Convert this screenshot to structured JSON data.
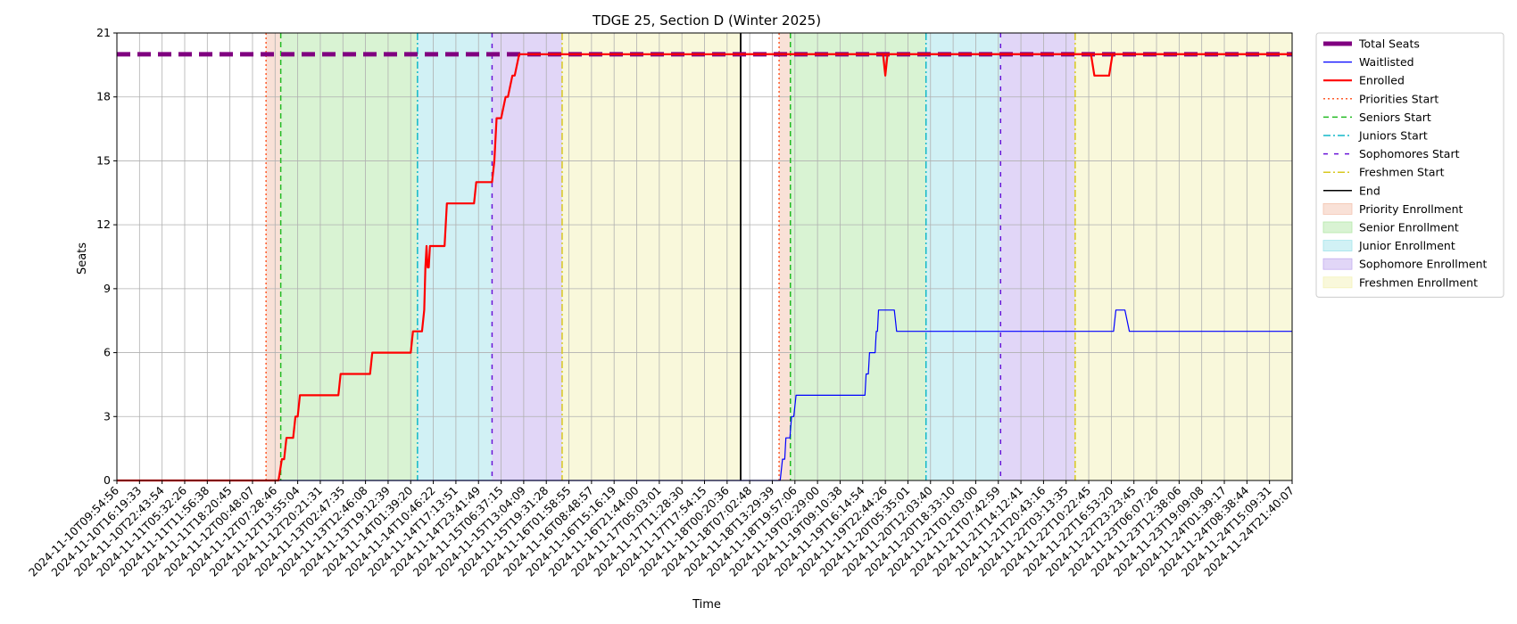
{
  "chart_data": {
    "type": "line",
    "title": "TDGE 25, Section D (Winter 2025)",
    "xlabel": "Time",
    "ylabel": "Seats",
    "ylim": [
      0,
      21
    ],
    "yticks": [
      0,
      3,
      6,
      9,
      12,
      15,
      18,
      21
    ],
    "grid": true,
    "legend_position": "outside-right",
    "x_tick_labels": [
      "2024-11-10T09:54:56",
      "2024-11-10T16:19:33",
      "2024-11-10T22:43:54",
      "2024-11-11T05:32:26",
      "2024-11-11T11:56:38",
      "2024-11-11T18:20:45",
      "2024-11-12T00:48:07",
      "2024-11-12T07:28:46",
      "2024-11-12T13:55:04",
      "2024-11-12T20:21:31",
      "2024-11-13T02:47:35",
      "2024-11-13T12:46:08",
      "2024-11-13T19:12:39",
      "2024-11-14T01:39:20",
      "2024-11-14T10:46:22",
      "2024-11-14T17:13:51",
      "2024-11-14T23:41:49",
      "2024-11-15T06:37:15",
      "2024-11-15T13:04:09",
      "2024-11-15T19:31:28",
      "2024-11-16T01:58:55",
      "2024-11-16T08:48:57",
      "2024-11-16T15:16:19",
      "2024-11-16T21:44:00",
      "2024-11-17T05:03:01",
      "2024-11-17T11:28:30",
      "2024-11-17T17:54:15",
      "2024-11-18T00:20:36",
      "2024-11-18T07:02:48",
      "2024-11-18T13:29:39",
      "2024-11-18T19:57:06",
      "2024-11-19T02:29:00",
      "2024-11-19T09:10:38",
      "2024-11-19T16:14:54",
      "2024-11-19T22:44:26",
      "2024-11-20T05:35:01",
      "2024-11-20T12:03:40",
      "2024-11-20T18:33:10",
      "2024-11-21T01:03:00",
      "2024-11-21T07:42:59",
      "2024-11-21T14:12:41",
      "2024-11-21T20:43:16",
      "2024-11-22T03:13:35",
      "2024-11-22T10:22:45",
      "2024-11-22T16:53:20",
      "2024-11-22T23:23:45",
      "2024-11-23T06:07:26",
      "2024-11-23T12:38:06",
      "2024-11-23T19:09:08",
      "2024-11-24T01:39:17",
      "2024-11-24T08:38:44",
      "2024-11-24T15:09:31",
      "2024-11-24T21:40:07"
    ],
    "xlim": [
      0,
      52
    ],
    "phases": [
      {
        "name": "Priority Enrollment",
        "start": 6.6,
        "end": 7.25,
        "color": "#f4c4b0"
      },
      {
        "name": "Senior Enrollment",
        "start": 7.25,
        "end": 13.3,
        "color": "#b4e8a8"
      },
      {
        "name": "Junior Enrollment",
        "start": 13.3,
        "end": 16.6,
        "color": "#a4e4ec"
      },
      {
        "name": "Sophomore Enrollment",
        "start": 16.6,
        "end": 19.7,
        "color": "#c4aef0"
      },
      {
        "name": "Freshmen Enrollment",
        "start": 19.7,
        "end": 27.6,
        "color": "#f4f2b8"
      },
      {
        "name": "Priority Enrollment",
        "start": 29.3,
        "end": 29.8,
        "color": "#f4c4b0"
      },
      {
        "name": "Senior Enrollment",
        "start": 29.8,
        "end": 35.8,
        "color": "#b4e8a8"
      },
      {
        "name": "Junior Enrollment",
        "start": 35.8,
        "end": 39.1,
        "color": "#a4e4ec"
      },
      {
        "name": "Sophomore Enrollment",
        "start": 39.1,
        "end": 42.4,
        "color": "#c4aef0"
      },
      {
        "name": "Freshmen Enrollment",
        "start": 42.4,
        "end": 52,
        "color": "#f4f2b8"
      }
    ],
    "markers": [
      {
        "name": "Priorities Start",
        "x": [
          6.6,
          29.3
        ],
        "color": "#ff5a2a",
        "dash": "2,3"
      },
      {
        "name": "Seniors Start",
        "x": [
          7.25,
          29.8
        ],
        "color": "#22bb22",
        "dash": "6,4"
      },
      {
        "name": "Juniors Start",
        "x": [
          13.3,
          35.8
        ],
        "color": "#12b8c8",
        "dash": "8,3,2,3"
      },
      {
        "name": "Sophomores Start",
        "x": [
          16.6,
          39.1
        ],
        "color": "#6a14d8",
        "dash": "5,7"
      },
      {
        "name": "Freshmen Start",
        "x": [
          19.7,
          42.4
        ],
        "color": "#d8c820",
        "dash": "8,3,2,3"
      },
      {
        "name": "End",
        "x": [
          27.6
        ],
        "color": "#000000",
        "dash": ""
      }
    ],
    "series": [
      {
        "name": "Total Seats",
        "color": "#800080",
        "width": 5,
        "dash": "15,8",
        "x": [
          0,
          52
        ],
        "y": [
          20,
          20
        ]
      },
      {
        "name": "Waitlisted",
        "color": "#0000ff",
        "width": 1.2,
        "dash": "",
        "x": [
          0,
          29.35,
          29.45,
          29.55,
          29.6,
          29.7,
          29.78,
          29.85,
          29.95,
          30.05,
          30.1,
          30.2,
          30.3,
          33.1,
          33.15,
          33.25,
          33.3,
          33.4,
          33.5,
          33.55,
          33.6,
          33.65,
          33.7,
          33.8,
          34.0,
          34.4,
          34.5,
          34.6,
          44.1,
          44.2,
          44.3,
          44.4,
          44.6,
          44.8,
          52
        ],
        "y": [
          0,
          0,
          1,
          1,
          2,
          2,
          2,
          3,
          3,
          4,
          4,
          4,
          4,
          4,
          5,
          5,
          6,
          6,
          6,
          6,
          7,
          7,
          8,
          8,
          8,
          8,
          7,
          7,
          7,
          8,
          8,
          8,
          8,
          7,
          7
        ]
      },
      {
        "name": "Enrolled",
        "color": "#ff0000",
        "width": 2.2,
        "dash": "",
        "x": [
          0,
          7.15,
          7.3,
          7.4,
          7.5,
          7.6,
          7.8,
          7.9,
          8.0,
          8.1,
          8.2,
          9.8,
          9.9,
          10.0,
          11.2,
          11.3,
          12.5,
          13.0,
          13.1,
          13.5,
          13.6,
          13.65,
          13.7,
          13.75,
          13.8,
          13.85,
          14.0,
          14.5,
          14.6,
          14.8,
          15.8,
          15.9,
          16.2,
          16.4,
          16.5,
          16.6,
          16.7,
          16.8,
          17.0,
          17.2,
          17.3,
          17.5,
          17.6,
          17.8,
          18.0,
          18.1,
          18.3,
          52
        ],
        "y": [
          0,
          0,
          1,
          1,
          2,
          2,
          2,
          3,
          3,
          4,
          4,
          4,
          5,
          5,
          5,
          6,
          6,
          6,
          7,
          7,
          8,
          10,
          11,
          10,
          10,
          11,
          11,
          11,
          13,
          13,
          13,
          14,
          14,
          14,
          14,
          14,
          15,
          17,
          17,
          18,
          18,
          19,
          19,
          20,
          20,
          20,
          20,
          20
        ]
      },
      {
        "name": "Enrolled (Winter dip)",
        "legend": false,
        "color": "#ff0000",
        "width": 2.2,
        "dash": "",
        "x": [
          27.6,
          33.9,
          34.0,
          34.1,
          43.1,
          43.25,
          43.9,
          44.05,
          52
        ],
        "y": [
          20,
          20,
          19,
          20,
          20,
          19,
          19,
          20,
          20
        ]
      }
    ],
    "legend": [
      {
        "label": "Total Seats",
        "kind": "line",
        "color": "#800080",
        "width": 5,
        "dash": ""
      },
      {
        "label": "Waitlisted",
        "kind": "line",
        "color": "#0000ff",
        "width": 1.2,
        "dash": ""
      },
      {
        "label": "Enrolled",
        "kind": "line",
        "color": "#ff0000",
        "width": 2.2,
        "dash": ""
      },
      {
        "label": "Priorities Start",
        "kind": "line",
        "color": "#ff5a2a",
        "width": 1.5,
        "dash": "2,3"
      },
      {
        "label": "Seniors Start",
        "kind": "line",
        "color": "#22bb22",
        "width": 1.5,
        "dash": "6,4"
      },
      {
        "label": "Juniors Start",
        "kind": "line",
        "color": "#12b8c8",
        "width": 1.5,
        "dash": "8,3,2,3"
      },
      {
        "label": "Sophomores Start",
        "kind": "line",
        "color": "#6a14d8",
        "width": 1.5,
        "dash": "5,7"
      },
      {
        "label": "Freshmen Start",
        "kind": "line",
        "color": "#d8c820",
        "width": 1.5,
        "dash": "8,3,2,3"
      },
      {
        "label": "End",
        "kind": "line",
        "color": "#000000",
        "width": 1.5,
        "dash": ""
      },
      {
        "label": "Priority Enrollment",
        "kind": "patch",
        "color": "#f4c4b0"
      },
      {
        "label": "Senior Enrollment",
        "kind": "patch",
        "color": "#b4e8a8"
      },
      {
        "label": "Junior Enrollment",
        "kind": "patch",
        "color": "#a4e4ec"
      },
      {
        "label": "Sophomore Enrollment",
        "kind": "patch",
        "color": "#c4aef0"
      },
      {
        "label": "Freshmen Enrollment",
        "kind": "patch",
        "color": "#f4f2b8"
      }
    ]
  }
}
